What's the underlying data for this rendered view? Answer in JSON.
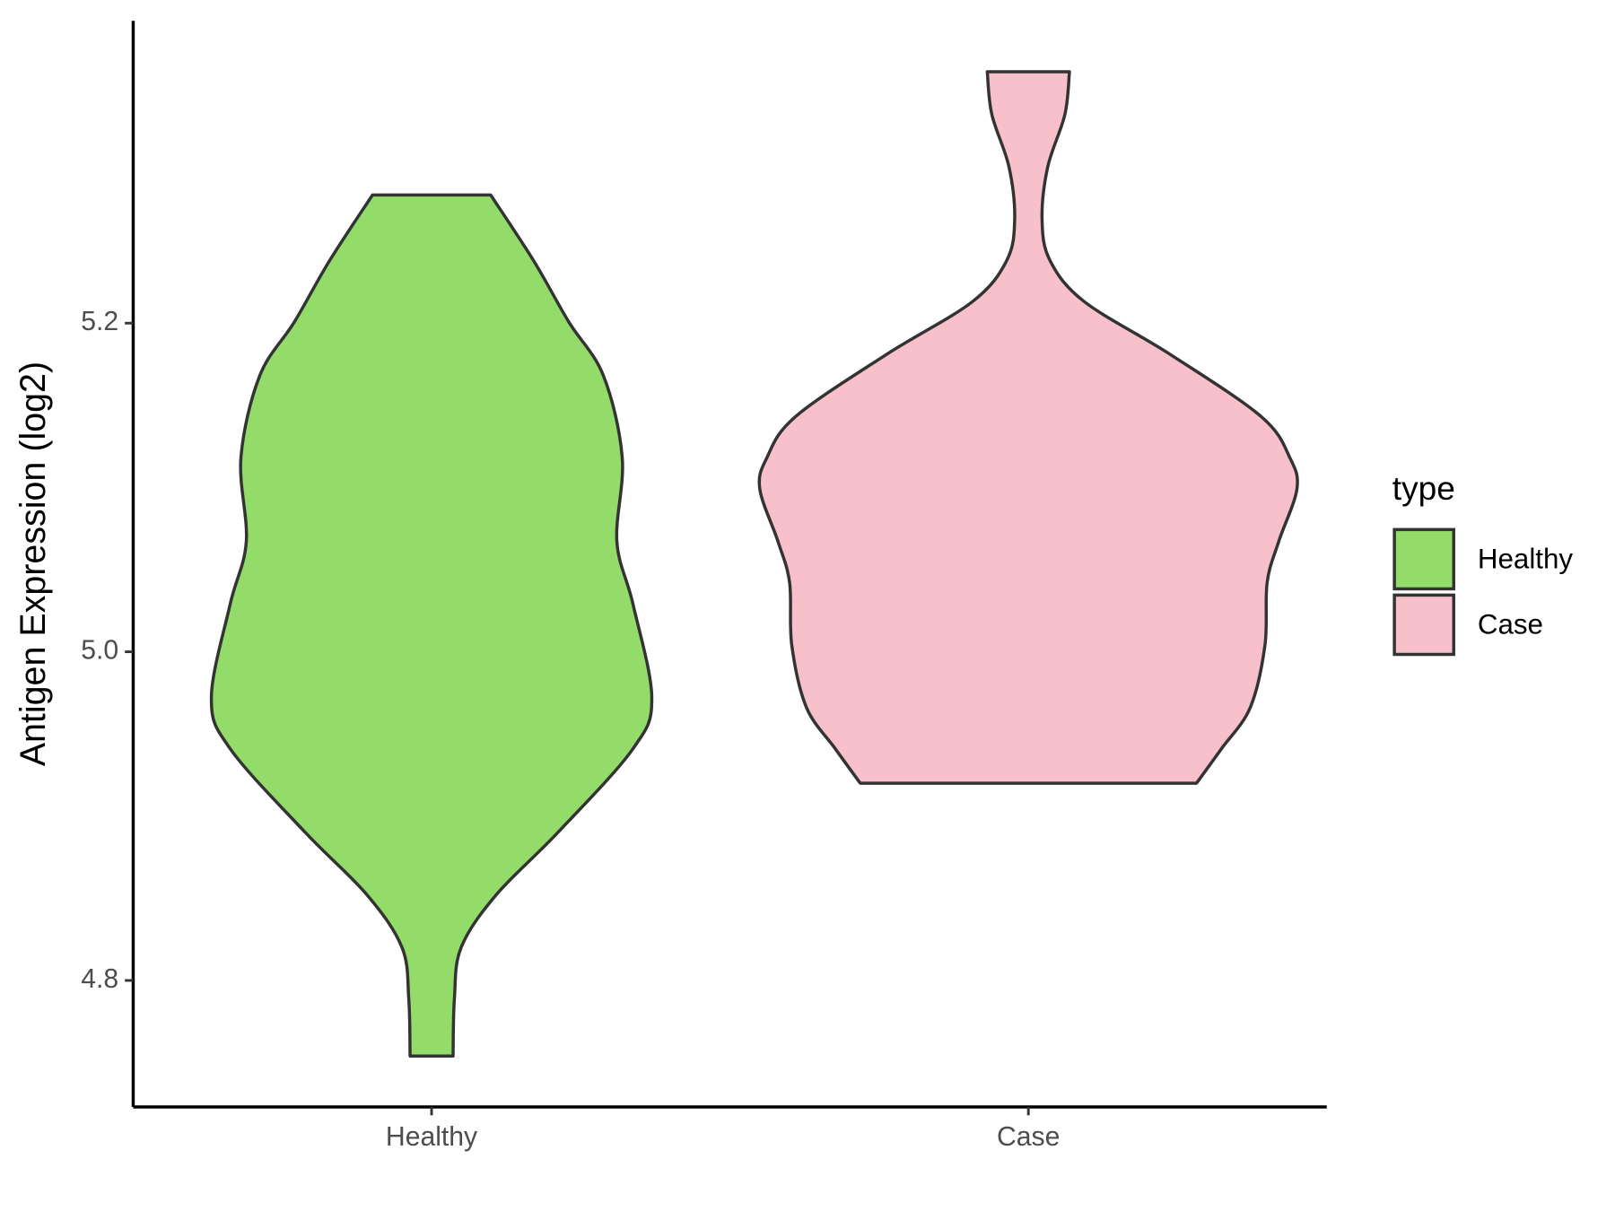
{
  "chart_data": {
    "type": "violin",
    "y_label": "Antigen Expression (log2)",
    "categories": [
      "Healthy",
      "Case"
    ],
    "legend_title": "type",
    "legend": "right",
    "ylim": [
      4.723,
      5.384
    ],
    "yticks": [
      4.8,
      {
        "value": 5,
        "label": "5.0"
      },
      5.2
    ],
    "series": [
      {
        "name": "Healthy",
        "color": "#93dc6a",
        "y": [
          5.278,
          5.238,
          5.201,
          5.168,
          5.118,
          5.067,
          5.029,
          4.972,
          4.941,
          4.89,
          4.852,
          4.82,
          4.789,
          4.754
        ],
        "widths": [
          0.22,
          0.38,
          0.51,
          0.64,
          0.71,
          0.69,
          0.75,
          0.82,
          0.75,
          0.47,
          0.24,
          0.11,
          0.085,
          0.08
        ]
      },
      {
        "name": "Case",
        "color": "#f8c0cb",
        "y": [
          5.353,
          5.327,
          5.295,
          5.263,
          5.238,
          5.213,
          5.181,
          5.143,
          5.118,
          5.099,
          5.067,
          5.042,
          5.004,
          4.966,
          4.941,
          4.92
        ],
        "widths": [
          0.153,
          0.136,
          0.072,
          0.051,
          0.081,
          0.209,
          0.528,
          0.868,
          0.974,
          1,
          0.932,
          0.889,
          0.881,
          0.826,
          0.719,
          0.626
        ]
      }
    ]
  }
}
